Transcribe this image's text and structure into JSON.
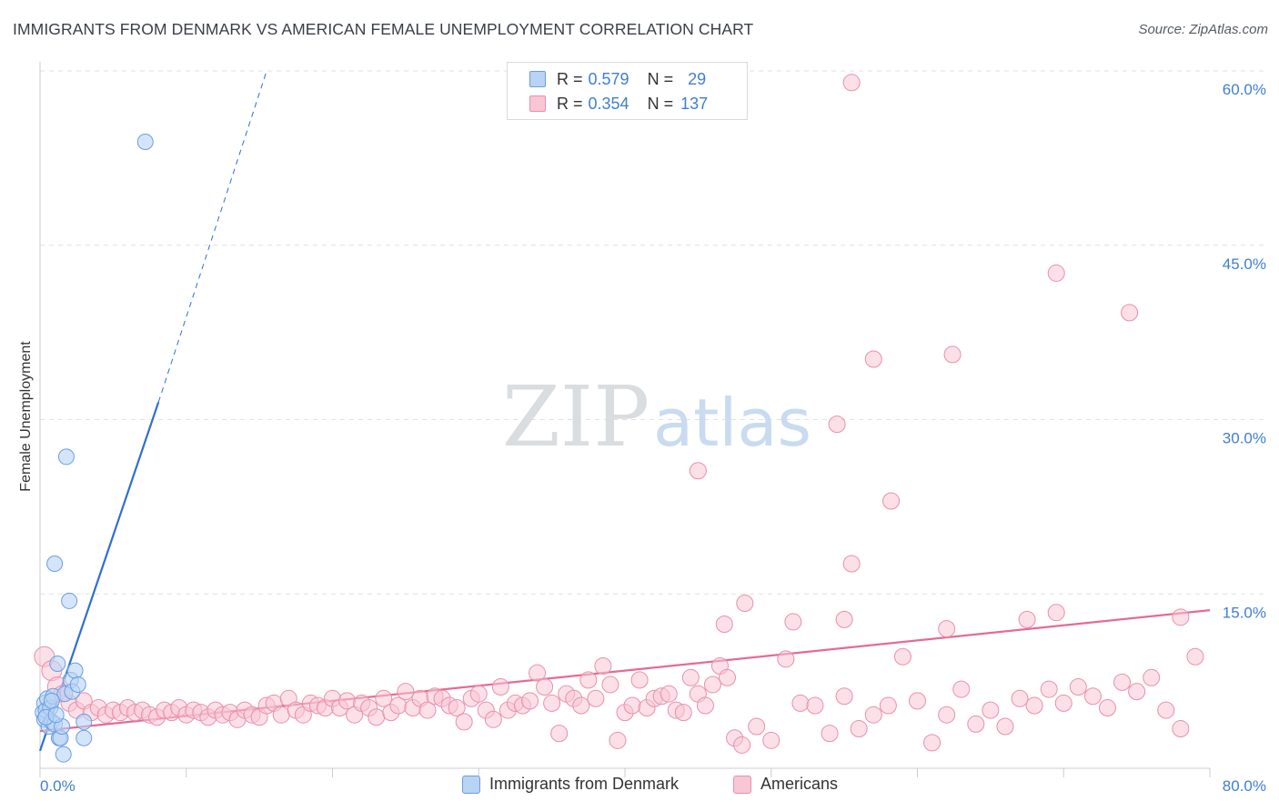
{
  "title": "IMMIGRANTS FROM DENMARK VS AMERICAN FEMALE UNEMPLOYMENT CORRELATION CHART",
  "source": "Source: ZipAtlas.com",
  "watermark": {
    "zip": "ZIP",
    "atlas": "atlas"
  },
  "colors": {
    "blue_fill": "#b9d3f5",
    "blue_stroke": "#6a9ee0",
    "blue_line": "#2f6fd0",
    "pink_fill": "#f8c6d5",
    "pink_stroke": "#ea8fac",
    "pink_line": "#e66a95",
    "grid": "#dde1e6",
    "tick_text": "#3f7fd1"
  },
  "legend": {
    "rows": [
      {
        "r_label": "R =",
        "r_value": "0.579",
        "n_label": "N =",
        "n_value": "29"
      },
      {
        "r_label": "R =",
        "r_value": "0.354",
        "n_label": "N =",
        "n_value": "137"
      }
    ]
  },
  "chart_data": {
    "type": "scatter",
    "title": "IMMIGRANTS FROM DENMARK VS AMERICAN FEMALE UNEMPLOYMENT CORRELATION CHART",
    "xlabel": "",
    "ylabel": "Female Unemployment",
    "xlim": [
      0,
      80
    ],
    "ylim": [
      0,
      60
    ],
    "x_tick_labels": [
      {
        "value": 0,
        "label": "0.0%"
      },
      {
        "value": 80,
        "label": "80.0%"
      }
    ],
    "y_tick_labels": [
      {
        "value": 15,
        "label": "15.0%"
      },
      {
        "value": 30,
        "label": "30.0%"
      },
      {
        "value": 45,
        "label": "45.0%"
      },
      {
        "value": 60,
        "label": "60.0%"
      }
    ],
    "grid": true,
    "legend_position": "top-center",
    "series": [
      {
        "name": "Immigrants from Denmark",
        "color": "blue",
        "r": 0.579,
        "n": 29,
        "trend": {
          "x0": 0,
          "y0": 1.5,
          "x1": 8.1,
          "y1": 31.5,
          "dashed_to_x": 15.5,
          "dashed_to_y": 60
        },
        "points": [
          [
            0.2,
            4.8
          ],
          [
            0.3,
            5.6
          ],
          [
            0.3,
            4.2
          ],
          [
            0.4,
            5.0
          ],
          [
            0.5,
            6.0
          ],
          [
            0.6,
            3.6
          ],
          [
            0.7,
            5.2
          ],
          [
            0.8,
            4.0
          ],
          [
            0.9,
            6.2
          ],
          [
            1.0,
            3.8
          ],
          [
            1.0,
            17.6
          ],
          [
            1.2,
            9.0
          ],
          [
            1.3,
            2.6
          ],
          [
            1.4,
            2.6
          ],
          [
            1.5,
            3.6
          ],
          [
            1.6,
            1.2
          ],
          [
            1.7,
            6.4
          ],
          [
            1.8,
            26.8
          ],
          [
            2.0,
            14.4
          ],
          [
            2.1,
            7.6
          ],
          [
            2.2,
            6.6
          ],
          [
            2.4,
            8.4
          ],
          [
            2.6,
            7.2
          ],
          [
            3.0,
            4.0
          ],
          [
            3.0,
            2.6
          ],
          [
            7.2,
            53.9
          ],
          [
            0.4,
            4.4
          ],
          [
            0.8,
            5.8
          ],
          [
            1.1,
            4.6
          ]
        ]
      },
      {
        "name": "Americans",
        "color": "pink",
        "r": 0.354,
        "n": 137,
        "trend": {
          "x0": 0,
          "y0": 3.2,
          "x1": 80,
          "y1": 13.6
        },
        "points": [
          [
            0.3,
            9.6
          ],
          [
            0.8,
            8.4
          ],
          [
            1.2,
            7.0
          ],
          [
            1.5,
            6.4
          ],
          [
            2.0,
            5.6
          ],
          [
            2.5,
            5.0
          ],
          [
            3.0,
            5.8
          ],
          [
            3.5,
            4.8
          ],
          [
            4.0,
            5.2
          ],
          [
            4.5,
            4.6
          ],
          [
            5.0,
            5.0
          ],
          [
            5.5,
            4.8
          ],
          [
            6.0,
            5.2
          ],
          [
            6.5,
            4.8
          ],
          [
            7.0,
            5.0
          ],
          [
            7.5,
            4.6
          ],
          [
            8.0,
            4.4
          ],
          [
            8.5,
            5.0
          ],
          [
            9.0,
            4.8
          ],
          [
            9.5,
            5.2
          ],
          [
            10.0,
            4.6
          ],
          [
            10.5,
            5.0
          ],
          [
            11.0,
            4.8
          ],
          [
            11.5,
            4.4
          ],
          [
            12.0,
            5.0
          ],
          [
            12.5,
            4.6
          ],
          [
            13.0,
            4.8
          ],
          [
            13.5,
            4.2
          ],
          [
            14.0,
            5.0
          ],
          [
            14.5,
            4.6
          ],
          [
            15.0,
            4.4
          ],
          [
            15.5,
            5.4
          ],
          [
            16.0,
            5.6
          ],
          [
            16.5,
            4.6
          ],
          [
            17.0,
            6.0
          ],
          [
            17.5,
            5.0
          ],
          [
            18.0,
            4.6
          ],
          [
            18.5,
            5.6
          ],
          [
            19.0,
            5.4
          ],
          [
            19.5,
            5.2
          ],
          [
            20.0,
            6.0
          ],
          [
            20.5,
            5.2
          ],
          [
            21.0,
            5.8
          ],
          [
            21.5,
            4.6
          ],
          [
            22.0,
            5.6
          ],
          [
            22.5,
            5.2
          ],
          [
            23.0,
            4.4
          ],
          [
            23.5,
            6.0
          ],
          [
            24.0,
            4.8
          ],
          [
            24.5,
            5.4
          ],
          [
            25.0,
            6.6
          ],
          [
            25.5,
            5.2
          ],
          [
            26.0,
            6.0
          ],
          [
            26.5,
            5.0
          ],
          [
            27.0,
            6.2
          ],
          [
            27.5,
            6.0
          ],
          [
            28.0,
            5.4
          ],
          [
            28.5,
            5.2
          ],
          [
            29.0,
            4.0
          ],
          [
            29.5,
            6.0
          ],
          [
            30.0,
            6.4
          ],
          [
            30.5,
            5.0
          ],
          [
            31.0,
            4.2
          ],
          [
            31.5,
            7.0
          ],
          [
            32.0,
            5.0
          ],
          [
            32.5,
            5.6
          ],
          [
            33.0,
            5.4
          ],
          [
            33.5,
            5.8
          ],
          [
            34.0,
            8.2
          ],
          [
            34.5,
            7.0
          ],
          [
            35.0,
            5.6
          ],
          [
            35.5,
            3.0
          ],
          [
            36.0,
            6.4
          ],
          [
            36.5,
            6.0
          ],
          [
            37.0,
            5.4
          ],
          [
            37.5,
            7.6
          ],
          [
            38.0,
            6.0
          ],
          [
            38.5,
            8.8
          ],
          [
            39.0,
            7.2
          ],
          [
            39.5,
            2.4
          ],
          [
            40.0,
            4.8
          ],
          [
            40.5,
            5.4
          ],
          [
            41.0,
            7.6
          ],
          [
            41.5,
            5.2
          ],
          [
            42.0,
            6.0
          ],
          [
            42.5,
            6.2
          ],
          [
            43.0,
            6.4
          ],
          [
            43.5,
            5.0
          ],
          [
            44.0,
            4.8
          ],
          [
            44.5,
            7.8
          ],
          [
            45.0,
            6.4
          ],
          [
            45.5,
            5.4
          ],
          [
            46.0,
            7.2
          ],
          [
            46.5,
            8.8
          ],
          [
            47.0,
            7.8
          ],
          [
            47.5,
            2.6
          ],
          [
            48.0,
            2.0
          ],
          [
            49.0,
            3.6
          ],
          [
            50.0,
            2.4
          ],
          [
            51.0,
            9.4
          ],
          [
            52.0,
            5.6
          ],
          [
            53.0,
            5.4
          ],
          [
            54.0,
            3.0
          ],
          [
            55.0,
            6.2
          ],
          [
            56.0,
            3.4
          ],
          [
            57.0,
            4.6
          ],
          [
            58.0,
            5.4
          ],
          [
            59.0,
            9.6
          ],
          [
            60.0,
            5.8
          ],
          [
            61.0,
            2.2
          ],
          [
            62.0,
            4.6
          ],
          [
            63.0,
            6.8
          ],
          [
            64.0,
            3.8
          ],
          [
            65.0,
            5.0
          ],
          [
            66.0,
            3.6
          ],
          [
            67.0,
            6.0
          ],
          [
            68.0,
            5.4
          ],
          [
            69.0,
            6.8
          ],
          [
            70.0,
            5.6
          ],
          [
            71.0,
            7.0
          ],
          [
            72.0,
            6.2
          ],
          [
            73.0,
            5.2
          ],
          [
            74.0,
            7.4
          ],
          [
            75.0,
            6.6
          ],
          [
            76.0,
            7.8
          ],
          [
            77.0,
            5.0
          ],
          [
            78.0,
            3.4
          ],
          [
            79.0,
            9.6
          ],
          [
            46.8,
            12.4
          ],
          [
            48.2,
            14.2
          ],
          [
            51.5,
            12.6
          ],
          [
            55.0,
            12.8
          ],
          [
            62.0,
            12.0
          ],
          [
            67.5,
            12.8
          ],
          [
            69.5,
            13.4
          ],
          [
            78.0,
            13.0
          ],
          [
            54.5,
            29.6
          ],
          [
            57.0,
            35.2
          ],
          [
            58.2,
            23.0
          ],
          [
            62.4,
            35.6
          ],
          [
            69.5,
            42.6
          ],
          [
            74.5,
            39.2
          ],
          [
            55.5,
            59.0
          ],
          [
            45.0,
            25.6
          ],
          [
            55.5,
            17.6
          ]
        ]
      }
    ]
  },
  "bottom_legend": [
    {
      "label": "Immigrants from Denmark"
    },
    {
      "label": "Americans"
    }
  ]
}
